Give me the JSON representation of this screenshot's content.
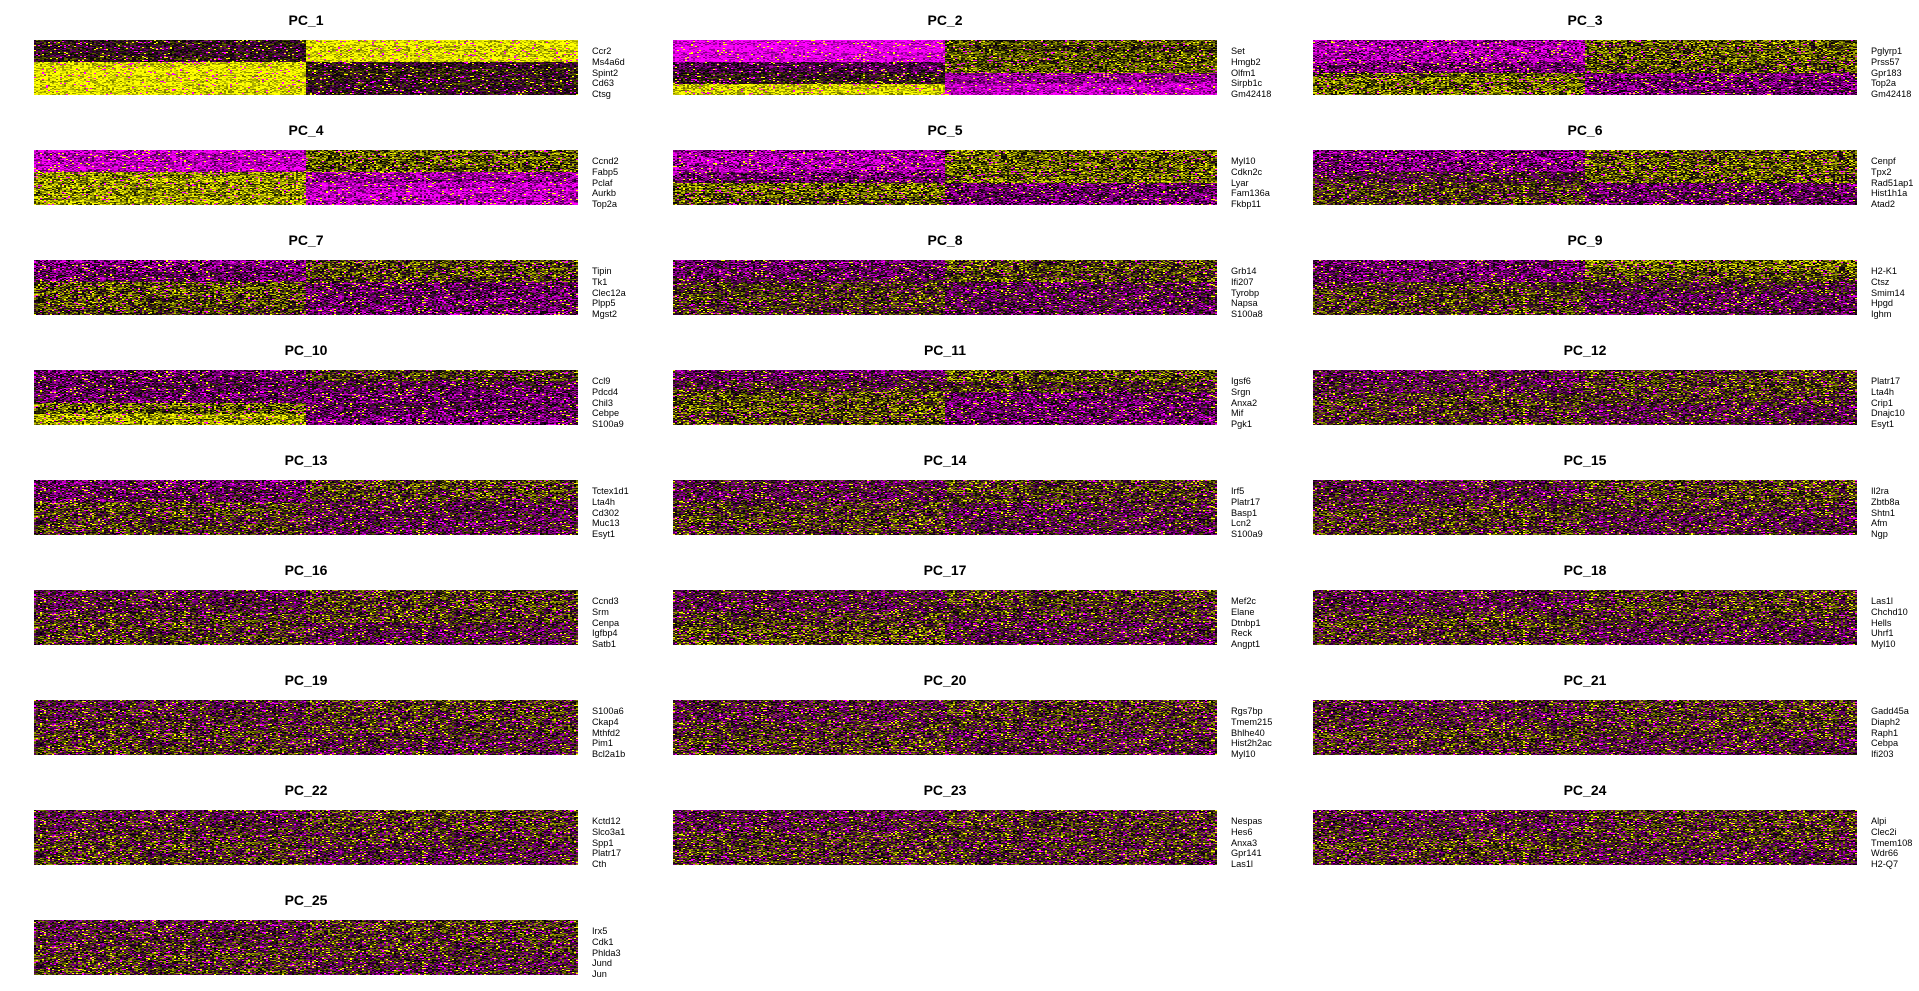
{
  "chart_data": {
    "type": "heatmap",
    "title": "PC heatmaps (top genes per principal component)",
    "colorscale": {
      "low": "#FF00FF",
      "mid": "#000000",
      "high": "#FFFF00"
    },
    "layout": {
      "columns": 3,
      "rows": 9
    },
    "panels": [
      {
        "title": "PC_1",
        "genes": [
          "Ccr2",
          "Ms4a6d",
          "Spint2",
          "Cd63",
          "Ctsg"
        ],
        "pattern": [
          [
            0,
            1
          ],
          [
            0,
            1
          ],
          [
            1,
            0
          ],
          [
            1,
            0
          ],
          [
            1,
            0
          ]
        ],
        "strength": 0.9
      },
      {
        "title": "PC_2",
        "genes": [
          "Set",
          "Hmgb2",
          "Olfm1",
          "Sirpb1c",
          "Gm42418"
        ],
        "pattern": [
          [
            -1,
            0.3
          ],
          [
            -1,
            0.3
          ],
          [
            -0.3,
            0.3
          ],
          [
            0,
            -0.6
          ],
          [
            0.9,
            -0.8
          ]
        ],
        "strength": 0.9
      },
      {
        "title": "PC_3",
        "genes": [
          "Pglyrp1",
          "Prss57",
          "Gpr183",
          "Top2a",
          "Gm42418"
        ],
        "pattern": [
          [
            -1,
            0.5
          ],
          [
            -1,
            0.5
          ],
          [
            -0.6,
            0.5
          ],
          [
            0.6,
            -0.6
          ],
          [
            0.7,
            -0.6
          ]
        ],
        "strength": 0.6
      },
      {
        "title": "PC_4",
        "genes": [
          "Ccnd2",
          "Fabp5",
          "Pclaf",
          "Aurkb",
          "Top2a"
        ],
        "pattern": [
          [
            -1,
            0.5
          ],
          [
            -1,
            0.5
          ],
          [
            0.8,
            -0.8
          ],
          [
            0.8,
            -1
          ],
          [
            0.8,
            -1
          ]
        ],
        "strength": 0.7
      },
      {
        "title": "PC_5",
        "genes": [
          "Myl10",
          "Cdkn2c",
          "Lyar",
          "Fam136a",
          "Fkbp11"
        ],
        "pattern": [
          [
            -1,
            0.6
          ],
          [
            -1,
            0.6
          ],
          [
            -0.6,
            0.6
          ],
          [
            0.6,
            -0.6
          ],
          [
            0.4,
            -0.6
          ]
        ],
        "strength": 0.6
      },
      {
        "title": "PC_6",
        "genes": [
          "Cenpf",
          "Tpx2",
          "Rad51ap1",
          "Hist1h1a",
          "Atad2"
        ],
        "pattern": [
          [
            -0.8,
            0.6
          ],
          [
            -0.8,
            0.6
          ],
          [
            -0.3,
            0.5
          ],
          [
            0.3,
            -0.5
          ],
          [
            0.3,
            -0.5
          ]
        ],
        "strength": 0.5
      },
      {
        "title": "PC_7",
        "genes": [
          "Tipin",
          "Tk1",
          "Clec12a",
          "Plpp5",
          "Mgst2"
        ],
        "pattern": [
          [
            -0.8,
            0.4
          ],
          [
            -0.6,
            0.4
          ],
          [
            0.5,
            -0.6
          ],
          [
            0.5,
            -0.6
          ],
          [
            0.3,
            -0.6
          ]
        ],
        "strength": 0.5
      },
      {
        "title": "PC_8",
        "genes": [
          "Grb14",
          "Ifi207",
          "Tyrobp",
          "Napsa",
          "S100a8"
        ],
        "pattern": [
          [
            -0.6,
            0.4
          ],
          [
            -0.4,
            0.4
          ],
          [
            0.2,
            -0.3
          ],
          [
            0.2,
            -0.4
          ],
          [
            0.1,
            -0.4
          ]
        ],
        "strength": 0.5
      },
      {
        "title": "PC_9",
        "genes": [
          "H2-K1",
          "Ctsz",
          "Smim14",
          "Hpgd",
          "Ighm"
        ],
        "pattern": [
          [
            -0.6,
            0.8
          ],
          [
            -0.6,
            0.4
          ],
          [
            0,
            -0.2
          ],
          [
            0.3,
            -0.4
          ],
          [
            0.3,
            -0.4
          ]
        ],
        "strength": 0.5
      },
      {
        "title": "PC_10",
        "genes": [
          "Ccl9",
          "Pdcd4",
          "Chil3",
          "Cebpe",
          "S100a9"
        ],
        "pattern": [
          [
            -0.5,
            0.2
          ],
          [
            -0.4,
            -0.3
          ],
          [
            -0.5,
            -0.6
          ],
          [
            0.6,
            -0.4
          ],
          [
            1,
            -0.6
          ]
        ],
        "strength": 0.6
      },
      {
        "title": "PC_11",
        "genes": [
          "Igsf6",
          "Srgn",
          "Anxa2",
          "Mif",
          "Pgk1"
        ],
        "pattern": [
          [
            -0.5,
            0.5
          ],
          [
            0,
            0.2
          ],
          [
            0.5,
            -0.5
          ],
          [
            0.5,
            -0.6
          ],
          [
            0.4,
            -0.6
          ]
        ],
        "strength": 0.5
      },
      {
        "title": "PC_12",
        "genes": [
          "Platr17",
          "Lta4h",
          "Crip1",
          "Dnajc10",
          "Esyt1"
        ],
        "pattern": [
          [
            -0.4,
            0.3
          ],
          [
            -0.3,
            0.3
          ],
          [
            0,
            0.1
          ],
          [
            0.2,
            -0.3
          ],
          [
            0.2,
            -0.3
          ]
        ],
        "strength": 0.4
      },
      {
        "title": "PC_13",
        "genes": [
          "Tctex1d1",
          "Lta4h",
          "Cd302",
          "Muc13",
          "Esyt1"
        ],
        "pattern": [
          [
            -0.7,
            0.4
          ],
          [
            -0.6,
            0.3
          ],
          [
            0.3,
            -0.4
          ],
          [
            0.2,
            -0.4
          ],
          [
            0.2,
            -0.4
          ]
        ],
        "strength": 0.4
      },
      {
        "title": "PC_14",
        "genes": [
          "Irf5",
          "Platr17",
          "Basp1",
          "Lcn2",
          "S100a9"
        ],
        "pattern": [
          [
            -0.3,
            0.3
          ],
          [
            -0.3,
            0.3
          ],
          [
            0.2,
            -0.2
          ],
          [
            0.3,
            -0.3
          ],
          [
            0.2,
            -0.3
          ]
        ],
        "strength": 0.4
      },
      {
        "title": "PC_15",
        "genes": [
          "Il2ra",
          "Zbtb8a",
          "Shtn1",
          "Afm",
          "Ngp"
        ],
        "pattern": [
          [
            -0.3,
            0.4
          ],
          [
            -0.2,
            0.3
          ],
          [
            0,
            0
          ],
          [
            0.2,
            -0.3
          ],
          [
            0.3,
            -0.2
          ]
        ],
        "strength": 0.4
      },
      {
        "title": "PC_16",
        "genes": [
          "Ccnd3",
          "Srm",
          "Cenpa",
          "Igfbp4",
          "Satb1"
        ],
        "pattern": [
          [
            -0.3,
            0.3
          ],
          [
            -0.3,
            0.3
          ],
          [
            0.1,
            0.2
          ],
          [
            0.2,
            -0.3
          ],
          [
            0.2,
            -0.3
          ]
        ],
        "strength": 0.4
      },
      {
        "title": "PC_17",
        "genes": [
          "Mef2c",
          "Elane",
          "Dtnbp1",
          "Reck",
          "Angpt1"
        ],
        "pattern": [
          [
            -0.3,
            0.3
          ],
          [
            -0.2,
            0.2
          ],
          [
            0.2,
            0
          ],
          [
            0.4,
            -0.3
          ],
          [
            0.5,
            -0.3
          ]
        ],
        "strength": 0.4
      },
      {
        "title": "PC_18",
        "genes": [
          "Las1l",
          "Chchd10",
          "Hells",
          "Uhrf1",
          "Myl10"
        ],
        "pattern": [
          [
            -0.3,
            0.3
          ],
          [
            -0.3,
            0.3
          ],
          [
            0.1,
            0
          ],
          [
            0.2,
            -0.3
          ],
          [
            0.2,
            -0.3
          ]
        ],
        "strength": 0.4
      },
      {
        "title": "PC_19",
        "genes": [
          "S100a6",
          "Ckap4",
          "Mthfd2",
          "Pim1",
          "Bcl2a1b"
        ],
        "pattern": [
          [
            -0.2,
            0.3
          ],
          [
            -0.2,
            0.2
          ],
          [
            0,
            0.1
          ],
          [
            0.2,
            -0.2
          ],
          [
            0.2,
            -0.2
          ]
        ],
        "strength": 0.35
      },
      {
        "title": "PC_20",
        "genes": [
          "Rgs7bp",
          "Tmem215",
          "Bhlhe40",
          "Hist2h2ac",
          "Myl10"
        ],
        "pattern": [
          [
            -0.2,
            0.3
          ],
          [
            -0.2,
            0.2
          ],
          [
            0.1,
            0
          ],
          [
            0.2,
            -0.2
          ],
          [
            0.2,
            -0.2
          ]
        ],
        "strength": 0.35
      },
      {
        "title": "PC_21",
        "genes": [
          "Gadd45a",
          "Diaph2",
          "Raph1",
          "Cebpa",
          "Ifi203"
        ],
        "pattern": [
          [
            -0.2,
            0.3
          ],
          [
            -0.2,
            0.2
          ],
          [
            0,
            0.1
          ],
          [
            0.2,
            -0.2
          ],
          [
            0.2,
            -0.2
          ]
        ],
        "strength": 0.35
      },
      {
        "title": "PC_22",
        "genes": [
          "Kctd12",
          "Slco3a1",
          "Spp1",
          "Platr17",
          "Cth"
        ],
        "pattern": [
          [
            -0.3,
            0.3
          ],
          [
            -0.2,
            0.2
          ],
          [
            0.1,
            0
          ],
          [
            0.2,
            -0.3
          ],
          [
            0.2,
            -0.3
          ]
        ],
        "strength": 0.35
      },
      {
        "title": "PC_23",
        "genes": [
          "Nespas",
          "Hes6",
          "Anxa3",
          "Gpr141",
          "Las1l"
        ],
        "pattern": [
          [
            -0.4,
            0.1
          ],
          [
            -0.2,
            0.2
          ],
          [
            0.2,
            0.1
          ],
          [
            0.2,
            0
          ],
          [
            0.1,
            0
          ]
        ],
        "strength": 0.35
      },
      {
        "title": "PC_24",
        "genes": [
          "Alpi",
          "Clec2i",
          "Tmem108",
          "Wdr66",
          "H2-Q7"
        ],
        "pattern": [
          [
            -0.3,
            0.3
          ],
          [
            -0.2,
            0.2
          ],
          [
            0,
            0.1
          ],
          [
            0.2,
            -0.2
          ],
          [
            0.2,
            -0.2
          ]
        ],
        "strength": 0.35
      },
      {
        "title": "PC_25",
        "genes": [
          "Irx5",
          "Cdk1",
          "Phlda3",
          "Jund",
          "Jun"
        ],
        "pattern": [
          [
            -0.3,
            0.3
          ],
          [
            -0.2,
            0.2
          ],
          [
            0,
            0.1
          ],
          [
            0.2,
            -0.2
          ],
          [
            0.2,
            -0.2
          ]
        ],
        "strength": 0.35
      }
    ]
  }
}
